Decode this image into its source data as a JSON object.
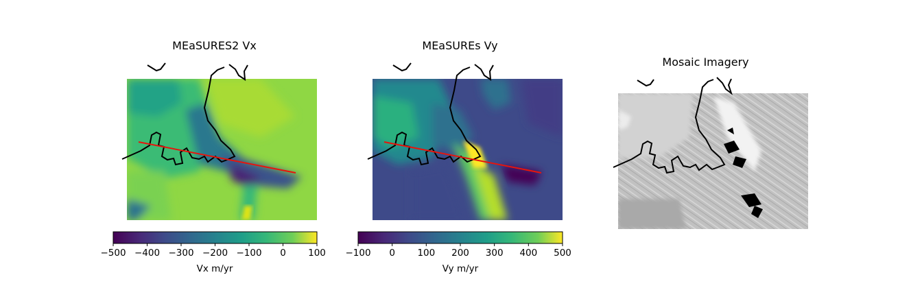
{
  "chart_data": [
    {
      "type": "heatmap",
      "title": "MEaSURES2 Vx",
      "colormap": "viridis",
      "colorbar": {
        "label": "Vx m/yr",
        "range": [
          -500,
          100
        ],
        "ticks": [
          -500,
          -400,
          -300,
          -200,
          -100,
          0,
          100
        ],
        "tick_labels": [
          "−500",
          "−400",
          "−300",
          "−200",
          "−100",
          "0",
          "100"
        ]
      },
      "overlays": [
        "coastline",
        "profile-line"
      ],
      "profile_line_color": "#e8140c"
    },
    {
      "type": "heatmap",
      "title": "MEaSUREs Vy",
      "colormap": "viridis",
      "colorbar": {
        "label": "Vy m/yr",
        "range": [
          -100,
          500
        ],
        "ticks": [
          -100,
          0,
          100,
          200,
          300,
          400,
          500
        ],
        "tick_labels": [
          "−100",
          "0",
          "100",
          "200",
          "300",
          "400",
          "500"
        ]
      },
      "overlays": [
        "coastline",
        "profile-line"
      ],
      "profile_line_color": "#e8140c"
    },
    {
      "type": "heatmap",
      "title": "Mosaic Imagery",
      "colormap": "gray",
      "overlays": [
        "coastline"
      ]
    }
  ]
}
